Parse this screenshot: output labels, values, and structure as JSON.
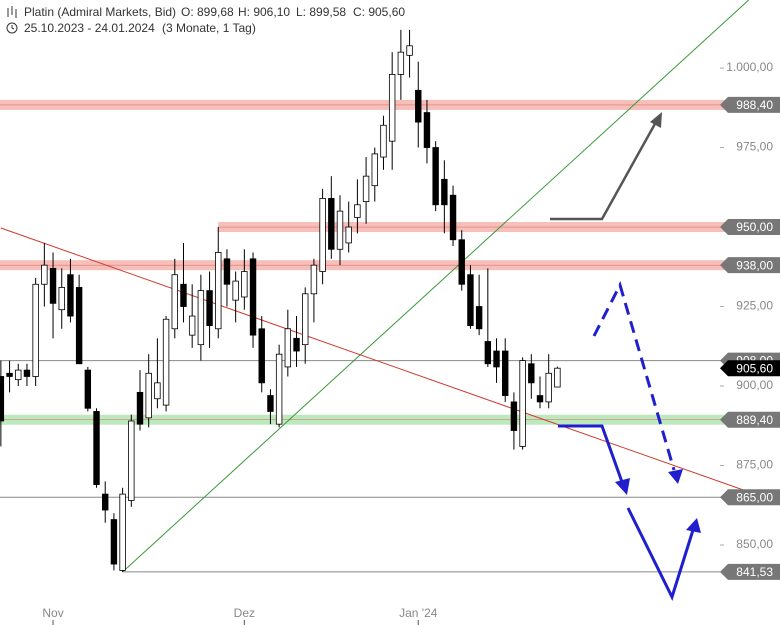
{
  "header": {
    "title": "Platin (Admiral Markets, Bid)",
    "quote": [
      "O: 899,68",
      "H: 906,10",
      "L: 899,58",
      "C: 905,60"
    ],
    "range": "25.10.2023 - 24.01.2024",
    "period": "(3 Monate, 1 Tag)"
  },
  "chart_data": {
    "type": "candlestick",
    "open": [
      903,
      904,
      902,
      905,
      903,
      932,
      937,
      924,
      935,
      931,
      905,
      892,
      866,
      858,
      842,
      864,
      898,
      890,
      896,
      894,
      918,
      932,
      916,
      913,
      930,
      918,
      940,
      927,
      928,
      940,
      918,
      897,
      888,
      906,
      915,
      913,
      929,
      936,
      959,
      943,
      945,
      953,
      958,
      963,
      972,
      977,
      998,
      1004,
      993,
      986,
      975,
      965,
      960,
      946,
      935,
      925,
      914,
      911,
      911,
      895,
      881,
      907,
      897,
      895,
      899.68
    ],
    "high": [
      908,
      908,
      907,
      907,
      934,
      945,
      942,
      937,
      940,
      935,
      906,
      893,
      870,
      860,
      868,
      891,
      905,
      910,
      915,
      922,
      940,
      945,
      932,
      935,
      936,
      950,
      943,
      936,
      943,
      942,
      922,
      899,
      913,
      924,
      922,
      931,
      940,
      962,
      966,
      960,
      958,
      965,
      972,
      975,
      985,
      1005,
      1012,
      1012,
      1002,
      990,
      977,
      971,
      963,
      949,
      938,
      935,
      937,
      915,
      915,
      898,
      909,
      910,
      903,
      910,
      906.1
    ],
    "low": [
      881,
      898,
      900,
      900,
      900,
      925,
      915,
      918,
      920,
      907,
      892,
      868,
      857,
      842,
      841.53,
      862,
      886,
      887,
      893,
      892,
      915,
      920,
      912,
      908,
      912,
      915,
      925,
      920,
      924,
      912,
      898,
      888,
      887,
      903,
      906,
      907,
      920,
      932,
      940,
      938,
      942,
      948,
      951,
      958,
      968,
      968,
      990,
      997,
      975,
      970,
      955,
      948,
      944,
      930,
      918,
      916,
      906,
      901,
      895,
      880,
      880,
      896,
      893,
      893,
      899.58
    ],
    "close": [
      889,
      903,
      905,
      903,
      932,
      938,
      926,
      931,
      922,
      907,
      893,
      869,
      861,
      844,
      866,
      889,
      888,
      904,
      901,
      921,
      935,
      925,
      922,
      930,
      919,
      942,
      932,
      933,
      936,
      916,
      901,
      892,
      910,
      918,
      911,
      929,
      938,
      959,
      943,
      955,
      950,
      957,
      966,
      973,
      982,
      998,
      1005,
      1007,
      983,
      975,
      957,
      957,
      946,
      932,
      919,
      918,
      907,
      906,
      897,
      886,
      908,
      901,
      895,
      904,
      905.6
    ],
    "xlim": [
      -0.1,
      89.6
    ],
    "xticks": [
      {
        "value": 6,
        "label": "Nov"
      },
      {
        "value": 28,
        "label": "Dez"
      },
      {
        "value": 48,
        "label": "Jan '24"
      }
    ],
    "ylim": [
      832.7,
      1021.4
    ],
    "yticks": [
      {
        "value": 850,
        "label": "850,00"
      },
      {
        "value": 875,
        "label": "875,00"
      },
      {
        "value": 900,
        "label": "900,00"
      },
      {
        "value": 925,
        "label": "925,00"
      },
      {
        "value": 950,
        "label": "950,00"
      },
      {
        "value": 975,
        "label": "975,00"
      },
      {
        "value": 1000,
        "label": "1.000,00"
      }
    ],
    "up_color": "#ffffff",
    "down_color": "#000000",
    "levels": [
      {
        "value": 988.4,
        "label": "988,40",
        "style": "band",
        "color": "#f3aaa3"
      },
      {
        "value": 950,
        "label": "950,00",
        "style": "band",
        "color": "#f3aaa3",
        "from": 25
      },
      {
        "value": 938,
        "label": "938,00",
        "style": "band",
        "color": "#f3aaa3"
      },
      {
        "value": 908,
        "label": "908,00",
        "style": "line",
        "color": "#888888"
      },
      {
        "value": 889.4,
        "label": "889,40",
        "style": "band",
        "color": "#a8e0a8"
      },
      {
        "value": 865,
        "label": "865,00",
        "style": "line",
        "color": "#888888"
      },
      {
        "value": 841.53,
        "label": "841,53",
        "style": "line",
        "color": "#888888",
        "from": 14
      },
      {
        "value": 905.6,
        "label": "905,60",
        "style": "current",
        "color": "#000000"
      }
    ],
    "trendlines": [
      {
        "color": "#3a9a3a",
        "points": [
          [
            14,
            841.53
          ],
          [
            86,
            1021.4
          ]
        ]
      },
      {
        "color": "#d03a30",
        "points": [
          [
            0,
            949.7
          ],
          [
            86,
            866.7
          ]
        ]
      }
    ]
  }
}
